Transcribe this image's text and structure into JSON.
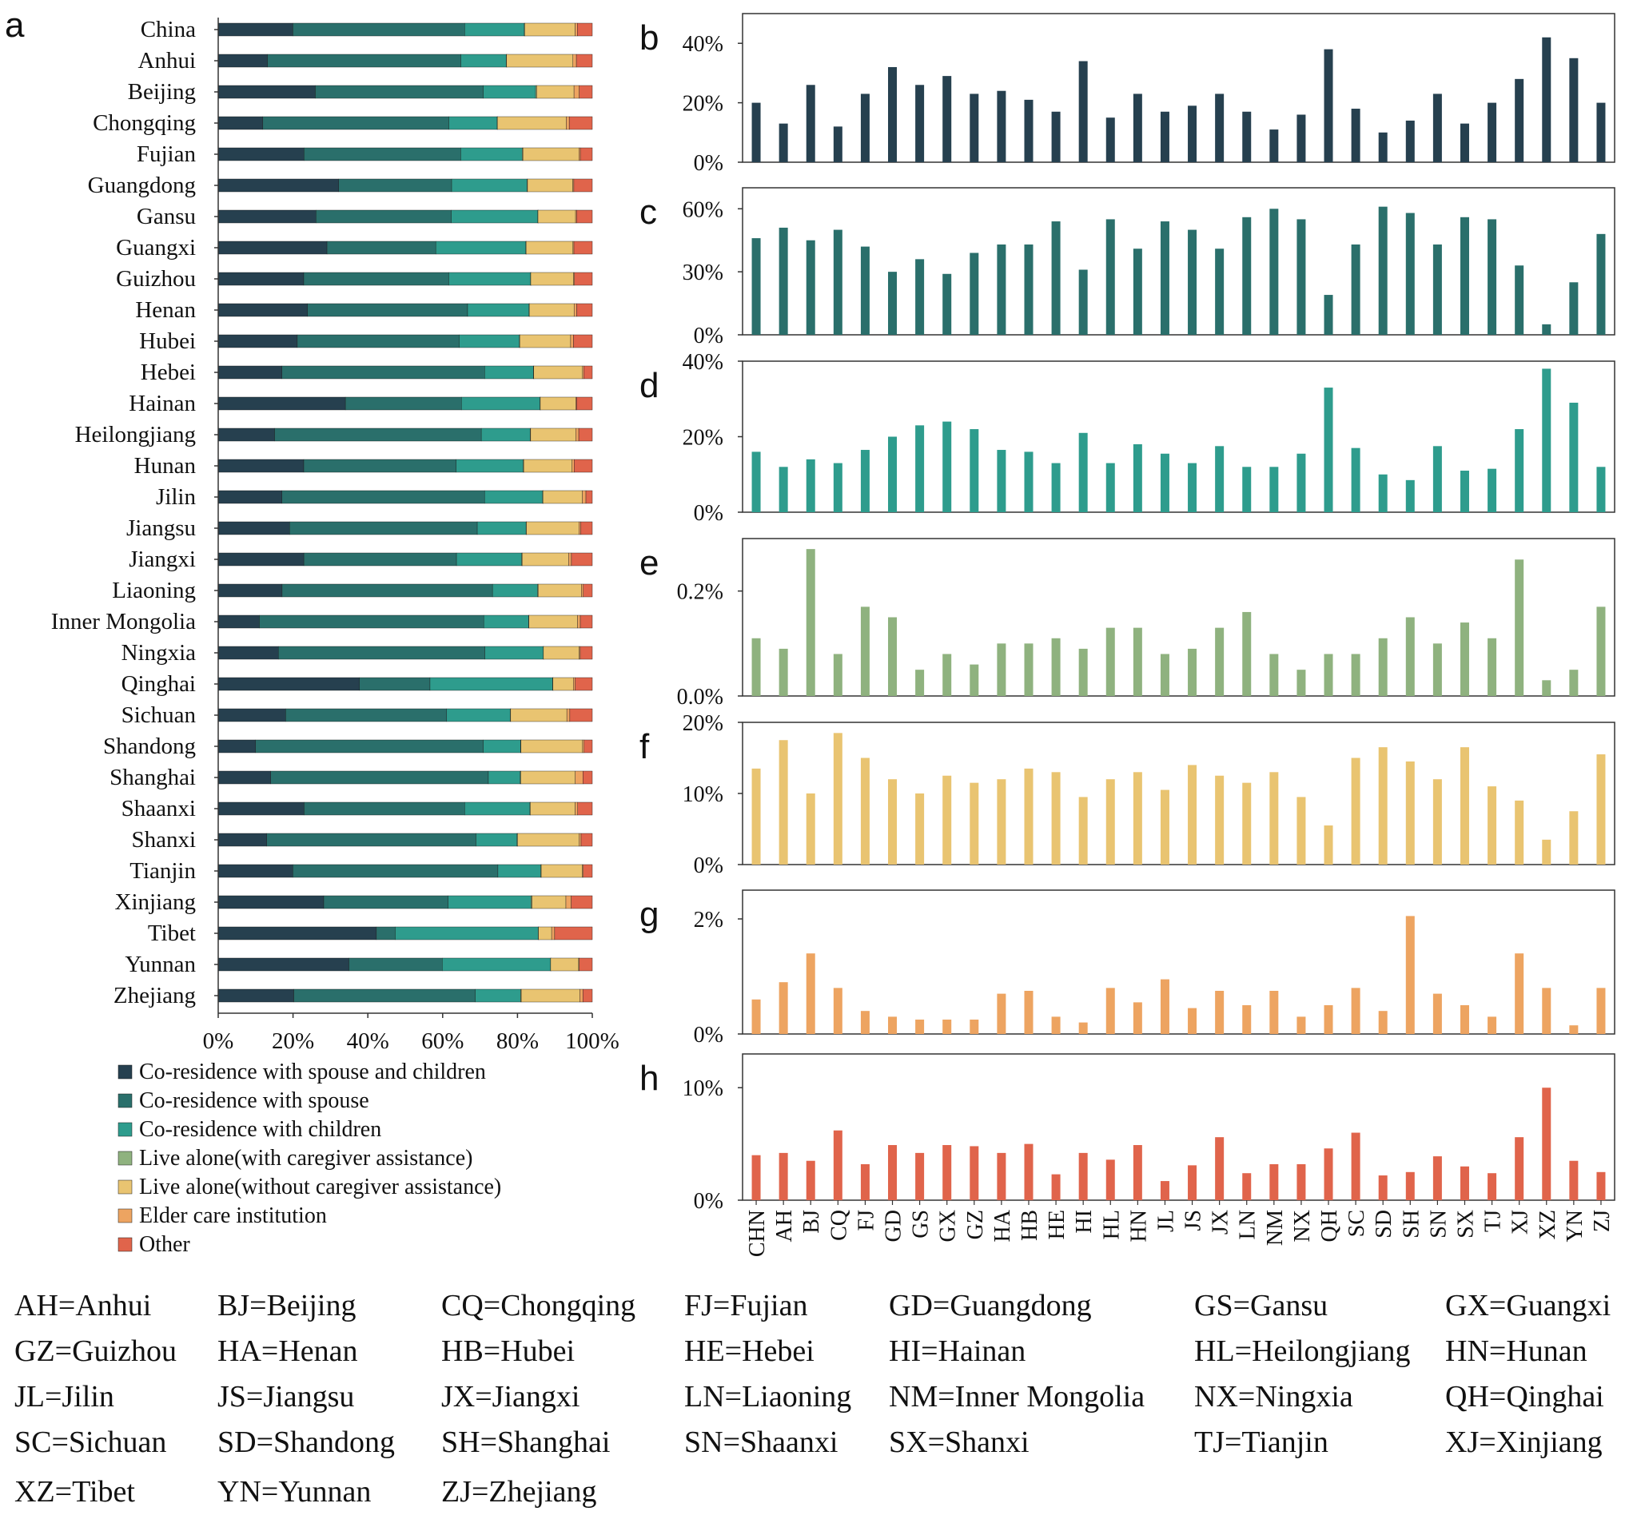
{
  "panel_letters": [
    "a",
    "b",
    "c",
    "d",
    "e",
    "f",
    "g",
    "h"
  ],
  "colors": {
    "Co-residence with spouse and children": "#26404f",
    "Co-residence with spouse": "#2a6f6b",
    "Co-residence with children": "#2e9c8d",
    "Live alone(with caregiver assistance)": "#8fb27f",
    "Live alone(without caregiver assistance)": "#e9c471",
    "Elder care institution": "#eda461",
    "Other": "#e0644b"
  },
  "chart_data": [
    {
      "panel": "a",
      "type": "bar",
      "orientation": "horizontal",
      "stacked": true,
      "categories": [
        "China",
        "Anhui",
        "Beijing",
        "Chongqing",
        "Fujian",
        "Guangdong",
        "Gansu",
        "Guangxi",
        "Guizhou",
        "Henan",
        "Hubei",
        "Hebei",
        "Hainan",
        "Heilongjiang",
        "Hunan",
        "Jilin",
        "Jiangsu",
        "Jiangxi",
        "Liaoning",
        "Inner Mongolia",
        "Ningxia",
        "Qinghai",
        "Sichuan",
        "Shandong",
        "Shanghai",
        "Shaanxi",
        "Shanxi",
        "Tianjin",
        "Xinjiang",
        "Tibet",
        "Yunnan",
        "Zhejiang"
      ],
      "series": [
        {
          "name": "Co-residence with spouse and children",
          "values": [
            20,
            13,
            26,
            12,
            23,
            32,
            26,
            29,
            23,
            24,
            21,
            17,
            34,
            15,
            23,
            17,
            19,
            23,
            17,
            11,
            16,
            38,
            18,
            10,
            14,
            23,
            13,
            20,
            28,
            42,
            35,
            20
          ]
        },
        {
          "name": "Co-residence with spouse",
          "values": [
            46,
            51,
            45,
            50,
            42,
            30,
            36,
            29,
            39,
            43,
            43,
            54,
            31,
            55,
            41,
            54,
            50,
            41,
            56,
            60,
            55,
            19,
            43,
            61,
            58,
            43,
            56,
            55,
            33,
            5,
            25,
            48
          ]
        },
        {
          "name": "Co-residence with children",
          "values": [
            16,
            12,
            14,
            13,
            16.5,
            20,
            23,
            24,
            22,
            16.5,
            16,
            13,
            21,
            13,
            18,
            15.5,
            13,
            17.5,
            12,
            12,
            15.5,
            33,
            17,
            10,
            8.5,
            17.5,
            11,
            11.5,
            22,
            38,
            29,
            12
          ]
        },
        {
          "name": "Live alone(with caregiver assistance)",
          "values": [
            0.11,
            0.09,
            0.28,
            0.08,
            0.17,
            0.15,
            0.05,
            0.08,
            0.06,
            0.1,
            0.1,
            0.11,
            0.09,
            0.13,
            0.13,
            0.08,
            0.09,
            0.13,
            0.16,
            0.08,
            0.05,
            0.08,
            0.08,
            0.11,
            0.15,
            0.1,
            0.14,
            0.11,
            0.26,
            0.03,
            0.05,
            0.17
          ]
        },
        {
          "name": "Live alone(without caregiver assistance)",
          "values": [
            13.5,
            17.5,
            10,
            18.5,
            15,
            12,
            10,
            12.5,
            11.5,
            12,
            13.5,
            13,
            9.5,
            12,
            13,
            10.5,
            14,
            12.5,
            11.5,
            13,
            9.5,
            5.5,
            15,
            16.5,
            14.5,
            12,
            16.5,
            11,
            9,
            3.5,
            7.5,
            15.5
          ]
        },
        {
          "name": "Elder care institution",
          "values": [
            0.6,
            0.9,
            1.4,
            0.8,
            0.4,
            0.3,
            0.25,
            0.25,
            0.25,
            0.7,
            0.75,
            0.3,
            0.2,
            0.8,
            0.55,
            0.95,
            0.45,
            0.75,
            0.5,
            0.75,
            0.3,
            0.5,
            0.8,
            0.4,
            2.05,
            0.7,
            0.5,
            0.3,
            1.4,
            0.8,
            0.15,
            0.8
          ]
        },
        {
          "name": "Other",
          "values": [
            4,
            4.2,
            3.5,
            6.2,
            3.2,
            4.9,
            4.2,
            4.9,
            4.8,
            4.2,
            5,
            2.3,
            4.2,
            3.6,
            4.9,
            1.7,
            3.1,
            5.6,
            2.4,
            3.2,
            3.2,
            4.6,
            6,
            2.2,
            2.5,
            3.9,
            3,
            2.4,
            5.6,
            10,
            3.5,
            2.5
          ]
        }
      ],
      "xlim": [
        0,
        100
      ],
      "xticks": [
        "0%",
        "20%",
        "40%",
        "60%",
        "80%",
        "100%"
      ],
      "legend": [
        "Co-residence with spouse and children",
        "Co-residence with spouse",
        "Co-residence with children",
        "Live alone(with caregiver assistance)",
        "Live alone(without caregiver assistance)",
        "Elder care institution",
        "Other"
      ],
      "legend_placement": "bottom"
    },
    {
      "panel": "b",
      "type": "bar",
      "series": "Co-residence with spouse and children",
      "categories": [
        "CHN",
        "AH",
        "BJ",
        "CQ",
        "FJ",
        "GD",
        "GS",
        "GX",
        "GZ",
        "HA",
        "HB",
        "HE",
        "HI",
        "HL",
        "HN",
        "JL",
        "JS",
        "JX",
        "LN",
        "NM",
        "NX",
        "QH",
        "SC",
        "SD",
        "SH",
        "SN",
        "SX",
        "TJ",
        "XJ",
        "XZ",
        "YN",
        "ZJ"
      ],
      "values": [
        20,
        13,
        26,
        12,
        23,
        32,
        26,
        29,
        23,
        24,
        21,
        17,
        34,
        15,
        23,
        17,
        19,
        23,
        17,
        11,
        16,
        38,
        18,
        10,
        14,
        23,
        13,
        20,
        28,
        42,
        35,
        20
      ],
      "ylim": [
        0,
        50
      ],
      "yticks": [
        {
          "v": 0,
          "label": "0%"
        },
        {
          "v": 20,
          "label": "20%"
        },
        {
          "v": 40,
          "label": "40%"
        }
      ]
    },
    {
      "panel": "c",
      "type": "bar",
      "series": "Co-residence with spouse",
      "categories": [
        "CHN",
        "AH",
        "BJ",
        "CQ",
        "FJ",
        "GD",
        "GS",
        "GX",
        "GZ",
        "HA",
        "HB",
        "HE",
        "HI",
        "HL",
        "HN",
        "JL",
        "JS",
        "JX",
        "LN",
        "NM",
        "NX",
        "QH",
        "SC",
        "SD",
        "SH",
        "SN",
        "SX",
        "TJ",
        "XJ",
        "XZ",
        "YN",
        "ZJ"
      ],
      "values": [
        46,
        51,
        45,
        50,
        42,
        30,
        36,
        29,
        39,
        43,
        43,
        54,
        31,
        55,
        41,
        54,
        50,
        41,
        56,
        60,
        55,
        19,
        43,
        61,
        58,
        43,
        56,
        55,
        33,
        5,
        25,
        48
      ],
      "ylim": [
        0,
        70
      ],
      "yticks": [
        {
          "v": 0,
          "label": "0%"
        },
        {
          "v": 30,
          "label": "30%"
        },
        {
          "v": 60,
          "label": "60%"
        }
      ]
    },
    {
      "panel": "d",
      "type": "bar",
      "series": "Co-residence with children",
      "categories": [
        "CHN",
        "AH",
        "BJ",
        "CQ",
        "FJ",
        "GD",
        "GS",
        "GX",
        "GZ",
        "HA",
        "HB",
        "HE",
        "HI",
        "HL",
        "HN",
        "JL",
        "JS",
        "JX",
        "LN",
        "NM",
        "NX",
        "QH",
        "SC",
        "SD",
        "SH",
        "SN",
        "SX",
        "TJ",
        "XJ",
        "XZ",
        "YN",
        "ZJ"
      ],
      "values": [
        16,
        12,
        14,
        13,
        16.5,
        20,
        23,
        24,
        22,
        16.5,
        16,
        13,
        21,
        13,
        18,
        15.5,
        13,
        17.5,
        12,
        12,
        15.5,
        33,
        17,
        10,
        8.5,
        17.5,
        11,
        11.5,
        22,
        38,
        29,
        12
      ],
      "ylim": [
        0,
        40
      ],
      "yticks": [
        {
          "v": 0,
          "label": "0%"
        },
        {
          "v": 20,
          "label": "20%"
        },
        {
          "v": 40,
          "label": "40%"
        }
      ]
    },
    {
      "panel": "e",
      "type": "bar",
      "series": "Live alone(with caregiver assistance)",
      "categories": [
        "CHN",
        "AH",
        "BJ",
        "CQ",
        "FJ",
        "GD",
        "GS",
        "GX",
        "GZ",
        "HA",
        "HB",
        "HE",
        "HI",
        "HL",
        "HN",
        "JL",
        "JS",
        "JX",
        "LN",
        "NM",
        "NX",
        "QH",
        "SC",
        "SD",
        "SH",
        "SN",
        "SX",
        "TJ",
        "XJ",
        "XZ",
        "YN",
        "ZJ"
      ],
      "values": [
        0.11,
        0.09,
        0.28,
        0.08,
        0.17,
        0.15,
        0.05,
        0.08,
        0.06,
        0.1,
        0.1,
        0.11,
        0.09,
        0.13,
        0.13,
        0.08,
        0.09,
        0.13,
        0.16,
        0.08,
        0.05,
        0.08,
        0.08,
        0.11,
        0.15,
        0.1,
        0.14,
        0.11,
        0.26,
        0.03,
        0.05,
        0.17
      ],
      "ylim": [
        0,
        0.3
      ],
      "yticks": [
        {
          "v": 0,
          "label": "0.0%"
        },
        {
          "v": 0.2,
          "label": "0.2%"
        }
      ]
    },
    {
      "panel": "f",
      "type": "bar",
      "series": "Live alone(without caregiver assistance)",
      "categories": [
        "CHN",
        "AH",
        "BJ",
        "CQ",
        "FJ",
        "GD",
        "GS",
        "GX",
        "GZ",
        "HA",
        "HB",
        "HE",
        "HI",
        "HL",
        "HN",
        "JL",
        "JS",
        "JX",
        "LN",
        "NM",
        "NX",
        "QH",
        "SC",
        "SD",
        "SH",
        "SN",
        "SX",
        "TJ",
        "XJ",
        "XZ",
        "YN",
        "ZJ"
      ],
      "values": [
        13.5,
        17.5,
        10,
        18.5,
        15,
        12,
        10,
        12.5,
        11.5,
        12,
        13.5,
        13,
        9.5,
        12,
        13,
        10.5,
        14,
        12.5,
        11.5,
        13,
        9.5,
        5.5,
        15,
        16.5,
        14.5,
        12,
        16.5,
        11,
        9,
        3.5,
        7.5,
        15.5
      ],
      "ylim": [
        0,
        20
      ],
      "yticks": [
        {
          "v": 0,
          "label": "0%"
        },
        {
          "v": 10,
          "label": "10%"
        },
        {
          "v": 20,
          "label": "20%"
        }
      ]
    },
    {
      "panel": "g",
      "type": "bar",
      "series": "Elder care institution",
      "categories": [
        "CHN",
        "AH",
        "BJ",
        "CQ",
        "FJ",
        "GD",
        "GS",
        "GX",
        "GZ",
        "HA",
        "HB",
        "HE",
        "HI",
        "HL",
        "HN",
        "JL",
        "JS",
        "JX",
        "LN",
        "NM",
        "NX",
        "QH",
        "SC",
        "SD",
        "SH",
        "SN",
        "SX",
        "TJ",
        "XJ",
        "XZ",
        "YN",
        "ZJ"
      ],
      "values": [
        0.6,
        0.9,
        1.4,
        0.8,
        0.4,
        0.3,
        0.25,
        0.25,
        0.25,
        0.7,
        0.75,
        0.3,
        0.2,
        0.8,
        0.55,
        0.95,
        0.45,
        0.75,
        0.5,
        0.75,
        0.3,
        0.5,
        0.8,
        0.4,
        2.05,
        0.7,
        0.5,
        0.3,
        1.4,
        0.8,
        0.15,
        0.8
      ],
      "ylim": [
        0,
        2.5
      ],
      "yticks": [
        {
          "v": 0,
          "label": "0%"
        },
        {
          "v": 2,
          "label": "2%"
        }
      ]
    },
    {
      "panel": "h",
      "type": "bar",
      "series": "Other",
      "categories": [
        "CHN",
        "AH",
        "BJ",
        "CQ",
        "FJ",
        "GD",
        "GS",
        "GX",
        "GZ",
        "HA",
        "HB",
        "HE",
        "HI",
        "HL",
        "HN",
        "JL",
        "JS",
        "JX",
        "LN",
        "NM",
        "NX",
        "QH",
        "SC",
        "SD",
        "SH",
        "SN",
        "SX",
        "TJ",
        "XJ",
        "XZ",
        "YN",
        "ZJ"
      ],
      "values": [
        4,
        4.2,
        3.5,
        6.2,
        3.2,
        4.9,
        4.2,
        4.9,
        4.8,
        4.2,
        5,
        2.3,
        4.2,
        3.6,
        4.9,
        1.7,
        3.1,
        5.6,
        2.4,
        3.2,
        3.2,
        4.6,
        6,
        2.2,
        2.5,
        3.9,
        3,
        2.4,
        5.6,
        10,
        3.5,
        2.5
      ],
      "ylim": [
        0,
        13
      ],
      "yticks": [
        {
          "v": 0,
          "label": "0%"
        },
        {
          "v": 10,
          "label": "10%"
        }
      ]
    }
  ],
  "abbreviations": [
    [
      "AH=Anhui",
      "BJ=Beijing",
      "CQ=Chongqing",
      "FJ=Fujian",
      "GD=Guangdong",
      "GS=Gansu",
      "GX=Guangxi"
    ],
    [
      "GZ=Guizhou",
      "HA=Henan",
      "HB=Hubei",
      "HE=Hebei",
      "HI=Hainan",
      "HL=Heilongjiang",
      "HN=Hunan"
    ],
    [
      "JL=Jilin",
      "JS=Jiangsu",
      "JX=Jiangxi",
      "LN=Liaoning",
      "NM=Inner Mongolia",
      "NX=Ningxia",
      "QH=Qinghai"
    ],
    [
      "SC=Sichuan",
      "SD=Shandong",
      "SH=Shanghai",
      "SN=Shaanxi",
      "SX=Shanxi",
      "TJ=Tianjin",
      "XJ=Xinjiang"
    ],
    [
      "XZ=Tibet",
      "YN=Yunnan",
      "ZJ=Zhejiang"
    ]
  ]
}
